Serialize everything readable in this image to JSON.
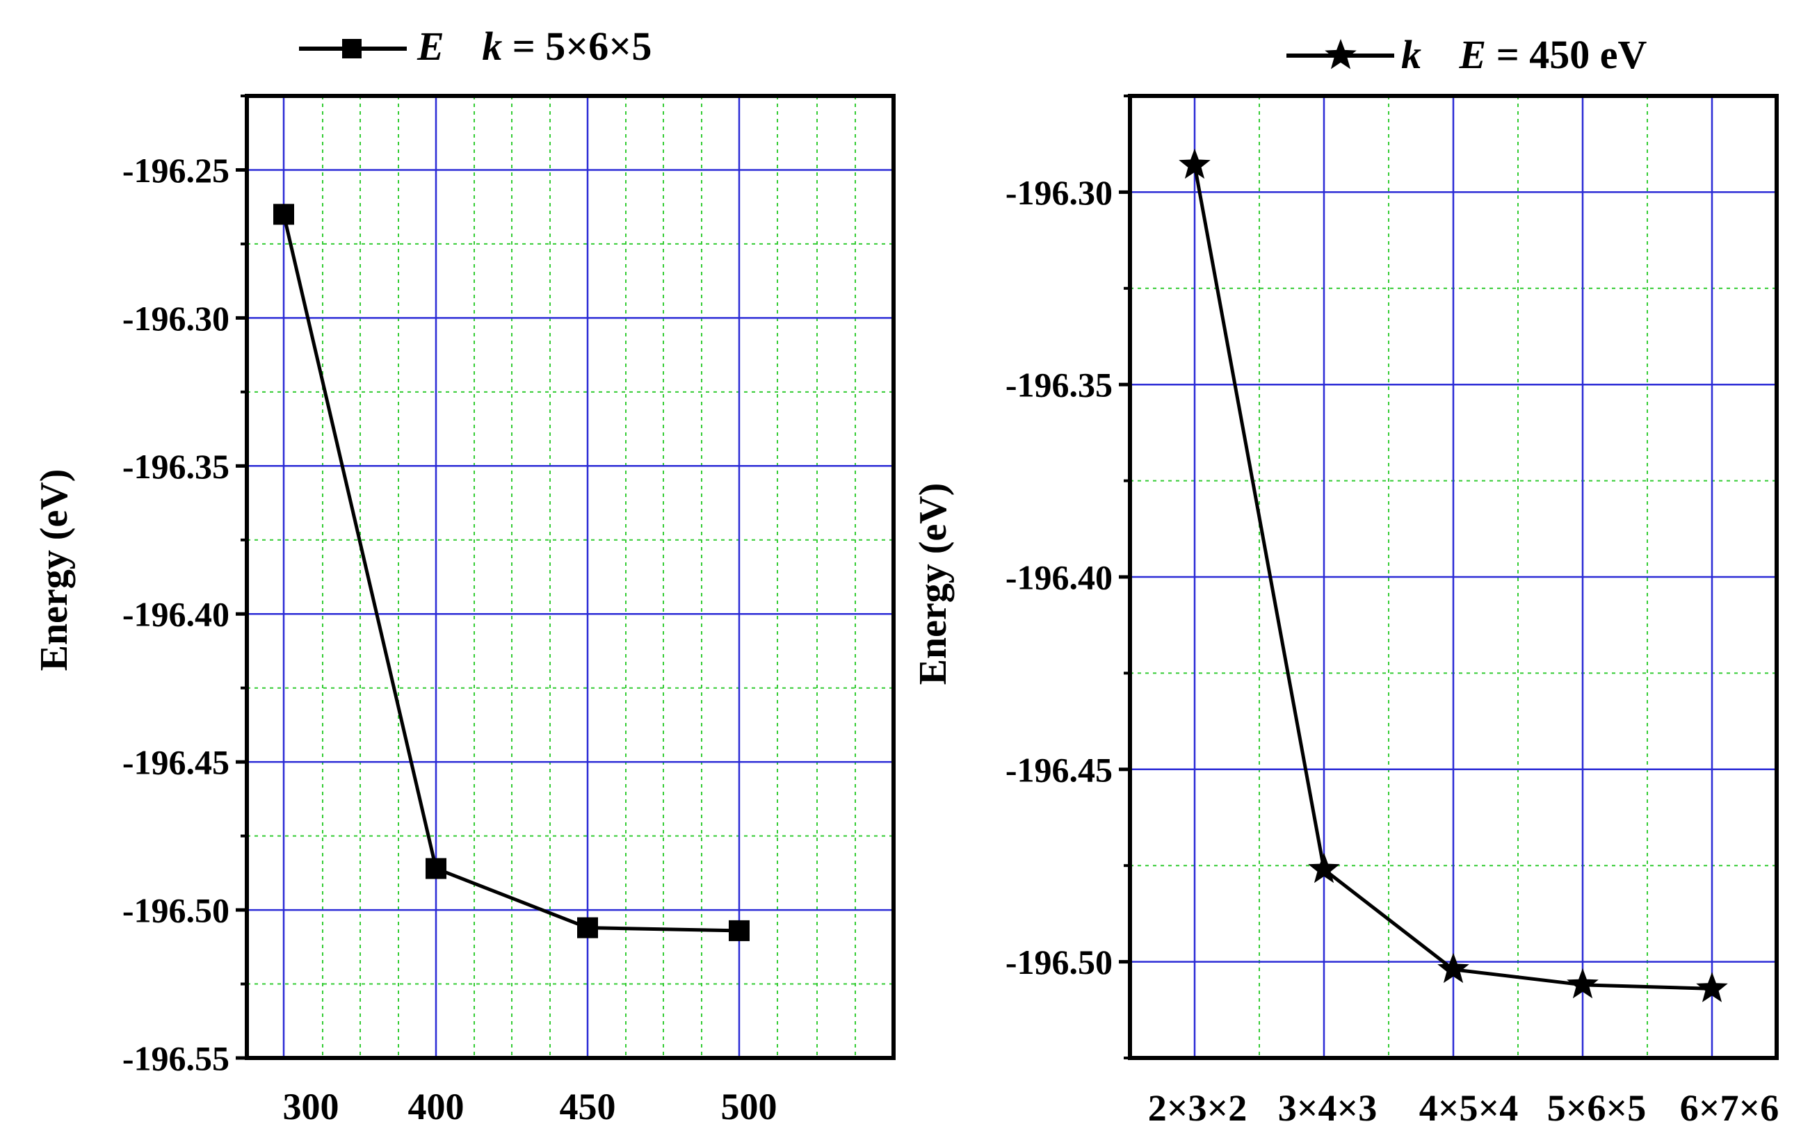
{
  "chart_data": [
    {
      "type": "line",
      "legend": {
        "series_symbol": "E",
        "condition_symbol": "k",
        "condition_value": " = 5×6×5",
        "placement": "top"
      },
      "xlabel": "",
      "ylabel": "Energy (eV)",
      "xticks": [
        "300",
        "400",
        "450",
        "500"
      ],
      "x": [
        "300",
        "400",
        "450",
        "500"
      ],
      "y": [
        -196.265,
        -196.486,
        -196.506,
        -196.507
      ],
      "ylim": [
        -196.55,
        -196.225
      ],
      "yticks": [
        "-196.25",
        "-196.30",
        "-196.35",
        "-196.40",
        "-196.45",
        "-196.50",
        "-196.55"
      ],
      "marker": "square",
      "grid": true,
      "colors": {
        "major_grid": "#2b2bd6",
        "minor_grid": "#33cc33",
        "line": "#000000"
      }
    },
    {
      "type": "line",
      "legend": {
        "series_symbol": "k",
        "condition_symbol": "E",
        "condition_value": " = 450 eV",
        "placement": "top"
      },
      "xlabel": "",
      "ylabel": "Energy (eV)",
      "xticks": [
        "2×3×2",
        "3×4×3",
        "4×5×4",
        "5×6×5",
        "6×7×6"
      ],
      "x": [
        "2×3×2",
        "3×4×3",
        "4×5×4",
        "5×6×5",
        "6×7×6"
      ],
      "y": [
        -196.293,
        -196.476,
        -196.502,
        -196.506,
        -196.507
      ],
      "ylim": [
        -196.525,
        -196.275
      ],
      "yticks": [
        "-196.30",
        "-196.35",
        "-196.40",
        "-196.45",
        "-196.50"
      ],
      "marker": "star",
      "grid": true,
      "colors": {
        "major_grid": "#2b2bd6",
        "minor_grid": "#33cc33",
        "line": "#000000"
      }
    }
  ]
}
